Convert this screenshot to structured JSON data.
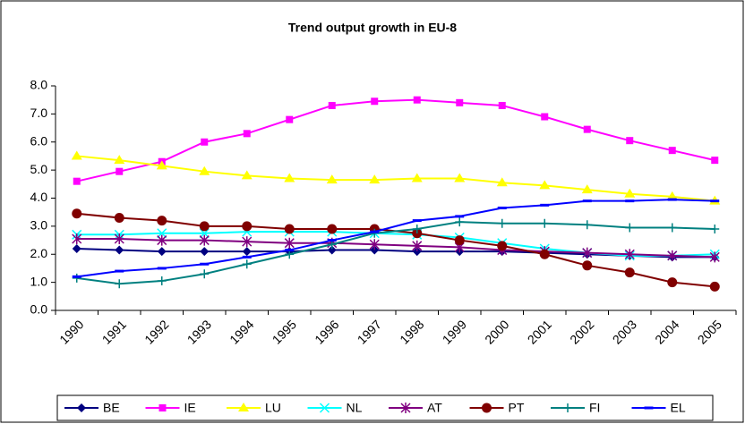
{
  "chart_data": {
    "type": "line",
    "title": "Trend output growth in EU-8",
    "categories": [
      "1990",
      "1991",
      "1992",
      "1993",
      "1994",
      "1995",
      "1996",
      "1997",
      "1998",
      "1999",
      "2000",
      "2001",
      "2002",
      "2003",
      "2004",
      "2005"
    ],
    "series": [
      {
        "name": "BE",
        "color": "#000080",
        "marker": "diamond",
        "values": [
          2.2,
          2.15,
          2.1,
          2.1,
          2.1,
          2.1,
          2.15,
          2.15,
          2.1,
          2.1,
          2.1,
          2.05,
          2.0,
          1.95,
          1.9,
          1.9
        ]
      },
      {
        "name": "IE",
        "color": "#ff00ff",
        "marker": "square",
        "values": [
          4.6,
          4.95,
          5.3,
          6.0,
          6.3,
          6.8,
          7.3,
          7.45,
          7.5,
          7.4,
          7.3,
          6.9,
          6.45,
          6.05,
          5.7,
          5.35
        ]
      },
      {
        "name": "LU",
        "color": "#ffff00",
        "marker": "triangle",
        "values": [
          5.5,
          5.35,
          5.15,
          4.95,
          4.8,
          4.7,
          4.65,
          4.65,
          4.7,
          4.7,
          4.55,
          4.45,
          4.3,
          4.15,
          4.05,
          3.9
        ]
      },
      {
        "name": "NL",
        "color": "#00ffff",
        "marker": "x",
        "values": [
          2.7,
          2.7,
          2.75,
          2.75,
          2.8,
          2.8,
          2.8,
          2.75,
          2.7,
          2.6,
          2.4,
          2.2,
          2.05,
          1.95,
          1.95,
          2.0
        ]
      },
      {
        "name": "AT",
        "color": "#800080",
        "marker": "star",
        "values": [
          2.55,
          2.55,
          2.5,
          2.5,
          2.45,
          2.4,
          2.4,
          2.35,
          2.3,
          2.25,
          2.15,
          2.1,
          2.05,
          2.0,
          1.95,
          1.9
        ]
      },
      {
        "name": "PT",
        "color": "#800000",
        "marker": "circle",
        "values": [
          3.45,
          3.3,
          3.2,
          3.0,
          3.0,
          2.9,
          2.9,
          2.9,
          2.75,
          2.5,
          2.3,
          2.0,
          1.6,
          1.35,
          1.0,
          0.85
        ]
      },
      {
        "name": "FI",
        "color": "#008080",
        "marker": "plus",
        "values": [
          1.15,
          0.95,
          1.05,
          1.3,
          1.65,
          2.0,
          2.35,
          2.75,
          2.9,
          3.15,
          3.1,
          3.1,
          3.05,
          2.95,
          2.95,
          2.9
        ]
      },
      {
        "name": "EL",
        "color": "#0000ff",
        "marker": "dash",
        "values": [
          1.2,
          1.4,
          1.5,
          1.65,
          1.9,
          2.15,
          2.5,
          2.8,
          3.2,
          3.35,
          3.65,
          3.75,
          3.9,
          3.9,
          3.95,
          3.9
        ]
      }
    ],
    "ylim": [
      0,
      8
    ],
    "yticks": [
      {
        "value": 0,
        "label": "0.0"
      },
      {
        "value": 1,
        "label": "1.0"
      },
      {
        "value": 2,
        "label": "2.0"
      },
      {
        "value": 3,
        "label": "3.0"
      },
      {
        "value": 4,
        "label": "4.0"
      },
      {
        "value": 5,
        "label": "5.0"
      },
      {
        "value": 6,
        "label": "6.0"
      },
      {
        "value": 7,
        "label": "7.0"
      },
      {
        "value": 8,
        "label": "8.0"
      }
    ],
    "grid": false,
    "legend": "bottom"
  }
}
